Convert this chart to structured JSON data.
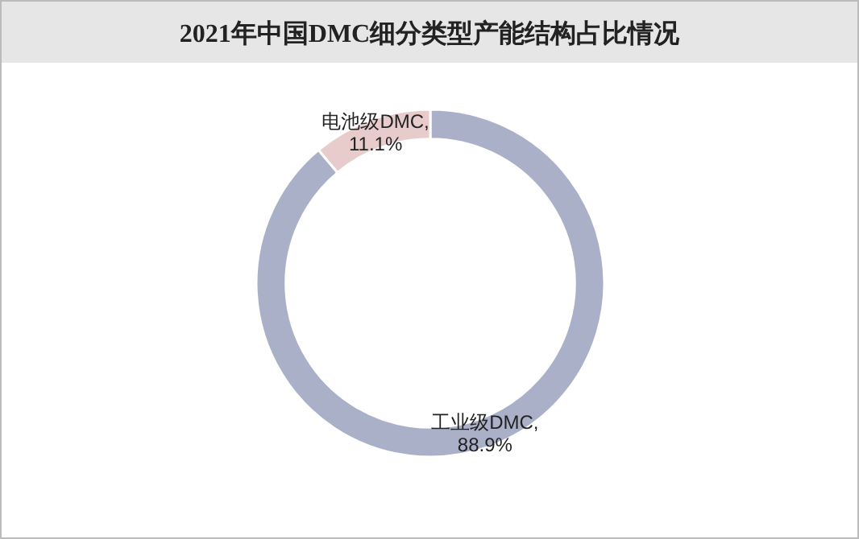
{
  "chart_data": {
    "type": "donut",
    "title": "2021年中国DMC细分类型产能结构占比情况",
    "categories": [
      "工业级DMC",
      "电池级DMC"
    ],
    "values": [
      88.9,
      11.1
    ],
    "colors": [
      "#aab0c8",
      "#e8cccc"
    ],
    "value_labels": [
      ",\n88.9%",
      ",\n11.1%"
    ]
  }
}
